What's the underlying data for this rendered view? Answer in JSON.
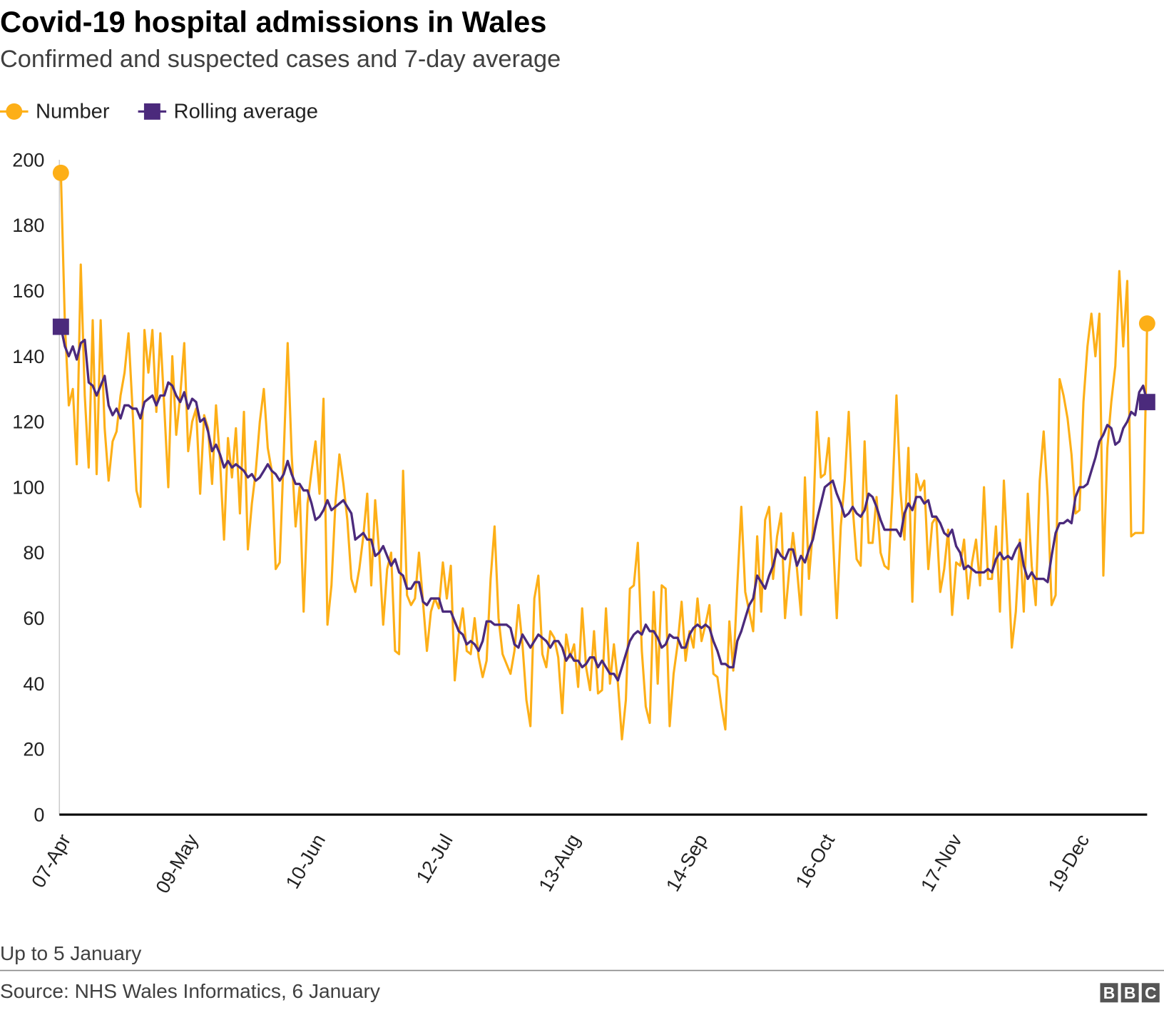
{
  "chart_data": {
    "type": "line",
    "title": "Covid-19 hospital admissions in Wales",
    "subtitle": "Confirmed and suspected cases and 7-day average",
    "xlabel": "",
    "ylabel": "",
    "ylim": [
      0,
      200
    ],
    "yticks": [
      0,
      20,
      40,
      60,
      80,
      100,
      120,
      140,
      160,
      180,
      200
    ],
    "xticks": [
      "07-Apr",
      "09-May",
      "10-Jun",
      "12-Jul",
      "13-Aug",
      "14-Sep",
      "16-Oct",
      "17-Nov",
      "19-Dec"
    ],
    "grid": false,
    "legend_position": "top-left",
    "series": [
      {
        "name": "Number",
        "color": "#fdaf17",
        "marker": "circle",
        "values": [
          196,
          150,
          125,
          130,
          107,
          168,
          128,
          106,
          151,
          104,
          151,
          118,
          102,
          114,
          117,
          128,
          135,
          147,
          124,
          99,
          94,
          148,
          135,
          148,
          123,
          147,
          124,
          100,
          140,
          116,
          128,
          144,
          111,
          120,
          124,
          98,
          122,
          118,
          101,
          125,
          108,
          84,
          115,
          103,
          118,
          92,
          123,
          81,
          95,
          105,
          120,
          130,
          112,
          105,
          75,
          77,
          110,
          144,
          110,
          88,
          100,
          62,
          95,
          105,
          114,
          98,
          127,
          58,
          70,
          95,
          110,
          101,
          90,
          72,
          68,
          75,
          85,
          98,
          70,
          96,
          80,
          58,
          75,
          80,
          50,
          49,
          105,
          67,
          64,
          66,
          80,
          65,
          50,
          62,
          66,
          63,
          77,
          66,
          76,
          41,
          55,
          63,
          50,
          49,
          60,
          48,
          42,
          47,
          72,
          88,
          60,
          49,
          46,
          43,
          50,
          64,
          52,
          35,
          27,
          66,
          73,
          49,
          45,
          56,
          54,
          48,
          31,
          55,
          48,
          52,
          39,
          63,
          45,
          38,
          56,
          37,
          38,
          63,
          40,
          52,
          40,
          23,
          35,
          69,
          70,
          83,
          50,
          33,
          28,
          68,
          40,
          70,
          69,
          27,
          43,
          52,
          65,
          47,
          56,
          51,
          66,
          53,
          58,
          64,
          43,
          42,
          33,
          26,
          59,
          44,
          70,
          94,
          68,
          62,
          56,
          85,
          62,
          90,
          94,
          72,
          85,
          92,
          60,
          74,
          86,
          75,
          61,
          103,
          72,
          87,
          123,
          103,
          104,
          115,
          86,
          60,
          88,
          102,
          123,
          94,
          78,
          76,
          114,
          83,
          83,
          97,
          80,
          76,
          75,
          98,
          128,
          99,
          84,
          112,
          65,
          104,
          99,
          102,
          75,
          89,
          91,
          68,
          75,
          87,
          61,
          77,
          76,
          84,
          66,
          77,
          84,
          70,
          100,
          72,
          72,
          88,
          62,
          102,
          78,
          51,
          62,
          84,
          62,
          98,
          76,
          64,
          102,
          117,
          97,
          64,
          67,
          133,
          128,
          121,
          110,
          92,
          93,
          126,
          143,
          153,
          140,
          153,
          73,
          112,
          126,
          137,
          166,
          143,
          163,
          85,
          86,
          86,
          86,
          150
        ]
      },
      {
        "name": "Rolling average",
        "color": "#4b2a7c",
        "marker": "square",
        "values": [
          149,
          143,
          140,
          143,
          139,
          144,
          145,
          132,
          131,
          128,
          131,
          134,
          125,
          122,
          124,
          121,
          125,
          125,
          124,
          124,
          121,
          126,
          127,
          128,
          125,
          128,
          128,
          132,
          131,
          128,
          126,
          129,
          124,
          127,
          126,
          120,
          121,
          117,
          111,
          113,
          110,
          106,
          108,
          106,
          107,
          106,
          105,
          103,
          104,
          102,
          103,
          105,
          107,
          105,
          104,
          102,
          104,
          108,
          104,
          101,
          101,
          99,
          99,
          95,
          90,
          91,
          93,
          96,
          93,
          94,
          95,
          96,
          94,
          92,
          84,
          85,
          86,
          84,
          84,
          79,
          80,
          82,
          79,
          76,
          78,
          74,
          73,
          69,
          69,
          71,
          71,
          65,
          64,
          66,
          66,
          66,
          62,
          62,
          62,
          59,
          56,
          55,
          52,
          53,
          52,
          50,
          53,
          59,
          59,
          58,
          58,
          58,
          58,
          57,
          52,
          51,
          55,
          53,
          51,
          53,
          55,
          54,
          53,
          51,
          53,
          53,
          51,
          47,
          49,
          47,
          47,
          45,
          46,
          48,
          48,
          45,
          47,
          45,
          43,
          43,
          41,
          45,
          49,
          53,
          55,
          56,
          55,
          58,
          56,
          56,
          54,
          51,
          52,
          55,
          54,
          54,
          51,
          51,
          55,
          57,
          58,
          57,
          58,
          57,
          53,
          50,
          46,
          46,
          45,
          45,
          53,
          56,
          60,
          64,
          66,
          73,
          71,
          69,
          73,
          76,
          81,
          79,
          78,
          81,
          81,
          76,
          79,
          77,
          81,
          84,
          90,
          95,
          100,
          101,
          102,
          98,
          95,
          91,
          92,
          94,
          92,
          91,
          93,
          98,
          97,
          94,
          90,
          87,
          87,
          87,
          87,
          85,
          92,
          95,
          93,
          97,
          97,
          95,
          96,
          91,
          91,
          89,
          86,
          85,
          87,
          82,
          80,
          75,
          76,
          75,
          74,
          74,
          74,
          75,
          74,
          78,
          80,
          78,
          79,
          78,
          81,
          83,
          76,
          72,
          74,
          72,
          72,
          72,
          71,
          79,
          86,
          89,
          89,
          90,
          89,
          97,
          100,
          100,
          101,
          105,
          109,
          114,
          116,
          119,
          118,
          113,
          114,
          118,
          120,
          123,
          122,
          129,
          131,
          126
        ]
      }
    ]
  },
  "footer": {
    "note": "Up to 5 January",
    "source": "Source: NHS Wales Informatics, 6 January",
    "logo": "BBC"
  }
}
